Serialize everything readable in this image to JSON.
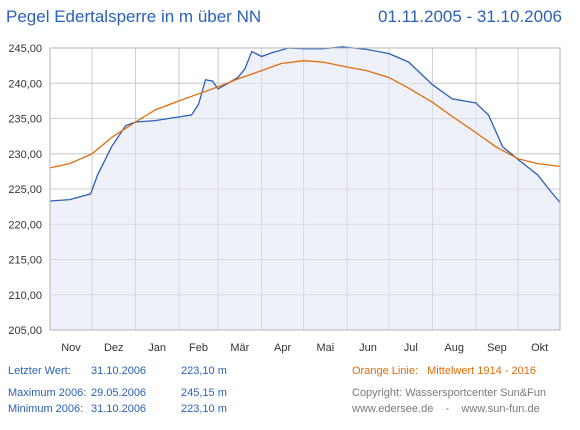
{
  "header": {
    "title": "Pegel Edertalsperre in m über NN",
    "date_range": "01.11.2005 - 31.10.2006"
  },
  "colors": {
    "actual_line": "#2a61b8",
    "average_line": "#e36c0a",
    "area_fill": "#eef1fa",
    "grid": "#d0d0d0"
  },
  "chart_data": {
    "type": "line",
    "title": "Pegel Edertalsperre in m über NN",
    "xlabel": "",
    "ylabel": "",
    "ylim": [
      205,
      245
    ],
    "y_ticks": [
      "245,00",
      "240,00",
      "235,00",
      "230,00",
      "225,00",
      "220,00",
      "215,00",
      "210,00",
      "205,00"
    ],
    "x_ticks": [
      "Nov",
      "Dez",
      "Jan",
      "Feb",
      "Mär",
      "Apr",
      "Mai",
      "Jun",
      "Jul",
      "Aug",
      "Sep",
      "Okt"
    ],
    "grid": true,
    "series": [
      {
        "name": "Letzter Wert",
        "type": "area",
        "x": [
          "01.11.2005",
          "15.11.2005",
          "30.11.2005",
          "05.12.2005",
          "15.12.2005",
          "25.12.2005",
          "01.01.2006",
          "15.01.2006",
          "31.01.2006",
          "10.02.2006",
          "15.02.2006",
          "20.02.2006",
          "25.02.2006",
          "01.03.2006",
          "08.03.2006",
          "15.03.2006",
          "20.03.2006",
          "25.03.2006",
          "01.04.2006",
          "08.04.2006",
          "15.04.2006",
          "20.04.2006",
          "01.05.2006",
          "15.05.2006",
          "29.05.2006",
          "15.06.2006",
          "01.07.2006",
          "15.07.2006",
          "01.08.2006",
          "15.08.2006",
          "01.09.2006",
          "10.09.2006",
          "20.09.2006",
          "01.10.2006",
          "15.10.2006",
          "25.10.2006",
          "31.10.2006"
        ],
        "values": [
          223.3,
          223.5,
          224.3,
          227.0,
          231.0,
          234.0,
          234.5,
          234.7,
          235.2,
          235.5,
          237.0,
          240.5,
          240.3,
          239.2,
          240.0,
          240.8,
          242.0,
          244.5,
          243.8,
          244.3,
          244.7,
          245.0,
          244.9,
          244.9,
          245.15,
          244.8,
          244.2,
          243.0,
          239.8,
          237.8,
          237.2,
          235.5,
          231.0,
          229.2,
          227.0,
          224.5,
          223.1
        ]
      },
      {
        "name": "Mittelwert 1914 - 2016",
        "type": "line",
        "x": [
          "01.11.2005",
          "15.11.2005",
          "01.12.2005",
          "15.12.2005",
          "01.01.2006",
          "15.01.2006",
          "01.02.2006",
          "15.02.2006",
          "01.03.2006",
          "15.03.2006",
          "01.04.2006",
          "15.04.2006",
          "01.05.2006",
          "15.05.2006",
          "01.06.2006",
          "15.06.2006",
          "01.07.2006",
          "15.07.2006",
          "01.08.2006",
          "15.08.2006",
          "01.09.2006",
          "15.09.2006",
          "01.10.2006",
          "15.10.2006",
          "31.10.2006"
        ],
        "values": [
          228.0,
          228.6,
          230.0,
          232.3,
          234.5,
          236.2,
          237.5,
          238.5,
          239.5,
          240.6,
          241.8,
          242.8,
          243.2,
          243.0,
          242.3,
          241.8,
          240.8,
          239.3,
          237.3,
          235.3,
          233.0,
          231.0,
          229.3,
          228.6,
          228.2
        ]
      }
    ]
  },
  "footer": {
    "letzter_wert_label": "Letzter Wert:",
    "letzter_wert_date": "31.10.2006",
    "letzter_wert_value": "223,10 m",
    "maximum_label": "Maximum 2006:",
    "maximum_date": "29.05.2006",
    "maximum_value": "245,15 m",
    "minimum_label": "Minimum  2006:",
    "minimum_date": "31.10.2006",
    "minimum_value": "223,10 m",
    "orange_label": "Orange Linie:",
    "orange_text": "Mittelwert   1914 - 2016",
    "copyright": "Copyright: Wassersportcenter Sun&Fun",
    "links": "www.edersee.de    -    www.sun-fun.de"
  }
}
